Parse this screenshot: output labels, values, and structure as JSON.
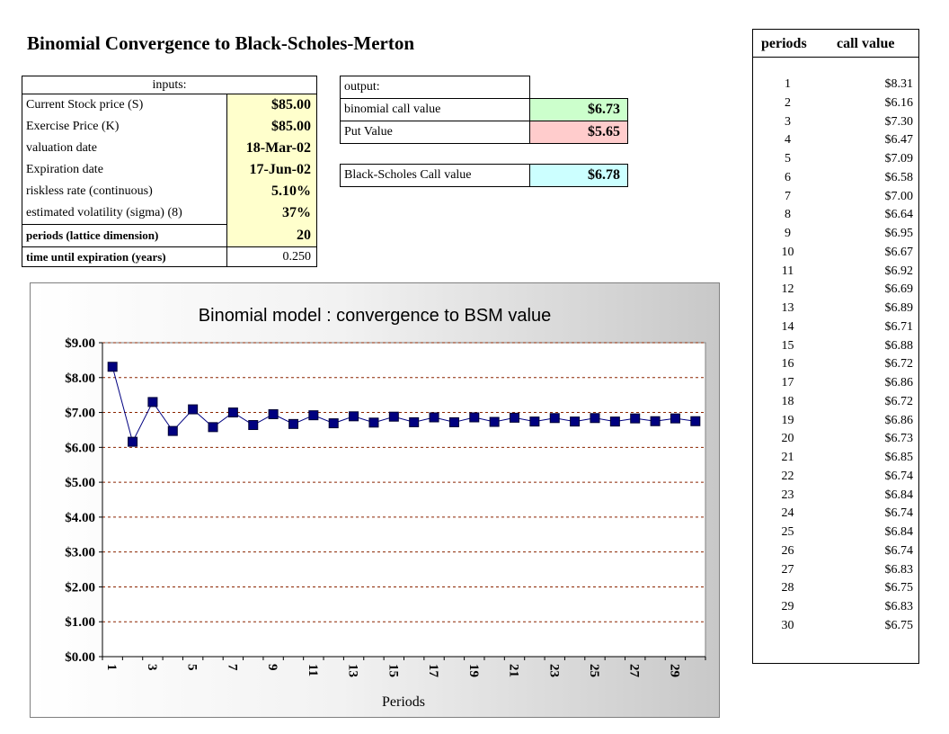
{
  "title": "Binomial Convergence to Black-Scholes-Merton",
  "inputs": {
    "header": "inputs:",
    "rows": [
      {
        "label": "Current Stock price (S)",
        "value": "$85.00"
      },
      {
        "label": "Exercise Price (K)",
        "value": "$85.00"
      },
      {
        "label": "valuation date",
        "value": "18-Mar-02"
      },
      {
        "label": "Expiration date",
        "value": "17-Jun-02"
      },
      {
        "label": "riskless rate (continuous)",
        "value": "5.10%"
      },
      {
        "label": "estimated volatility (sigma) (8)",
        "value": "37%"
      },
      {
        "label": "periods (lattice dimension)",
        "value": "20"
      }
    ],
    "time_label": "time until expiration (years)",
    "time_value": "0.250"
  },
  "output": {
    "header": "output:",
    "binomial_label": "binomial call value",
    "binomial_value": "$6.73",
    "put_label": "Put Value",
    "put_value": "$5.65",
    "bs_label": "Black-Scholes Call value",
    "bs_value": "$6.78"
  },
  "colors": {
    "input_fill": "#ffffcc",
    "binomial_fill": "#ccffcc",
    "put_fill": "#ffcccc",
    "bs_fill": "#ccffff",
    "series": "#000080"
  },
  "table": {
    "col1": "periods",
    "col2": "call value",
    "rows": [
      {
        "p": "1",
        "v": "$8.31"
      },
      {
        "p": "2",
        "v": "$6.16"
      },
      {
        "p": "3",
        "v": "$7.30"
      },
      {
        "p": "4",
        "v": "$6.47"
      },
      {
        "p": "5",
        "v": "$7.09"
      },
      {
        "p": "6",
        "v": "$6.58"
      },
      {
        "p": "7",
        "v": "$7.00"
      },
      {
        "p": "8",
        "v": "$6.64"
      },
      {
        "p": "9",
        "v": "$6.95"
      },
      {
        "p": "10",
        "v": "$6.67"
      },
      {
        "p": "11",
        "v": "$6.92"
      },
      {
        "p": "12",
        "v": "$6.69"
      },
      {
        "p": "13",
        "v": "$6.89"
      },
      {
        "p": "14",
        "v": "$6.71"
      },
      {
        "p": "15",
        "v": "$6.88"
      },
      {
        "p": "16",
        "v": "$6.72"
      },
      {
        "p": "17",
        "v": "$6.86"
      },
      {
        "p": "18",
        "v": "$6.72"
      },
      {
        "p": "19",
        "v": "$6.86"
      },
      {
        "p": "20",
        "v": "$6.73"
      },
      {
        "p": "21",
        "v": "$6.85"
      },
      {
        "p": "22",
        "v": "$6.74"
      },
      {
        "p": "23",
        "v": "$6.84"
      },
      {
        "p": "24",
        "v": "$6.74"
      },
      {
        "p": "25",
        "v": "$6.84"
      },
      {
        "p": "26",
        "v": "$6.74"
      },
      {
        "p": "27",
        "v": "$6.83"
      },
      {
        "p": "28",
        "v": "$6.75"
      },
      {
        "p": "29",
        "v": "$6.83"
      },
      {
        "p": "30",
        "v": "$6.75"
      }
    ]
  },
  "chart_data": {
    "type": "line",
    "title": "Binomial model : convergence to BSM value",
    "xlabel": "Periods",
    "ylabel": "",
    "x": [
      1,
      2,
      3,
      4,
      5,
      6,
      7,
      8,
      9,
      10,
      11,
      12,
      13,
      14,
      15,
      16,
      17,
      18,
      19,
      20,
      21,
      22,
      23,
      24,
      25,
      26,
      27,
      28,
      29,
      30
    ],
    "x_tick_labels": [
      "1",
      "3",
      "5",
      "7",
      "9",
      "11",
      "13",
      "15",
      "17",
      "19",
      "21",
      "23",
      "25",
      "27",
      "29"
    ],
    "y_tick_labels": [
      "$0.00",
      "$1.00",
      "$2.00",
      "$3.00",
      "$4.00",
      "$5.00",
      "$6.00",
      "$7.00",
      "$8.00",
      "$9.00"
    ],
    "ylim": [
      0,
      9
    ],
    "grid": "horizontal dashed",
    "series": [
      {
        "values": [
          8.31,
          6.16,
          7.3,
          6.47,
          7.09,
          6.58,
          7.0,
          6.64,
          6.95,
          6.67,
          6.92,
          6.69,
          6.89,
          6.71,
          6.88,
          6.72,
          6.86,
          6.72,
          6.86,
          6.73,
          6.85,
          6.74,
          6.84,
          6.74,
          6.84,
          6.74,
          6.83,
          6.75,
          6.83,
          6.75
        ]
      }
    ]
  }
}
